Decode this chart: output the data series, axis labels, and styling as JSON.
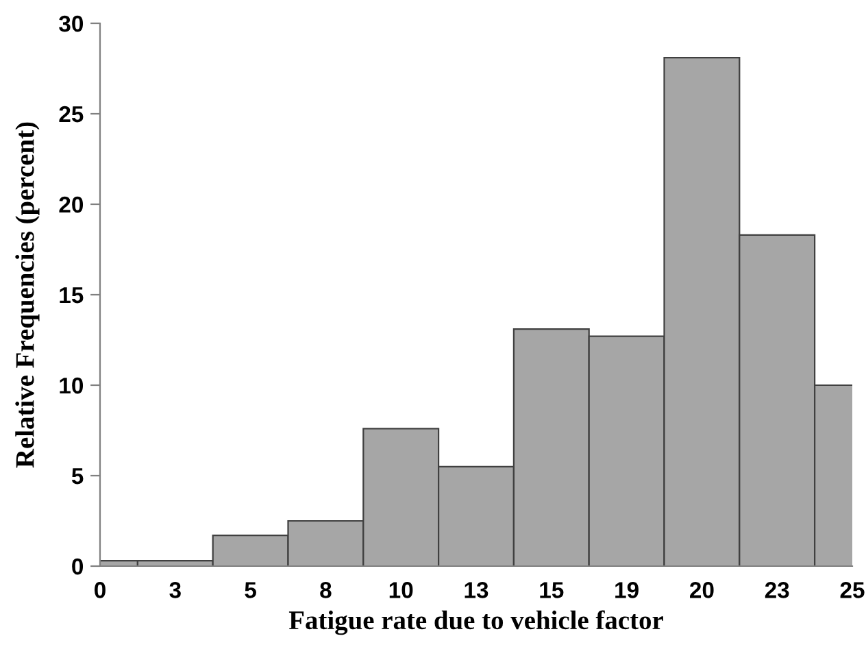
{
  "chart_data": {
    "type": "bar",
    "xlabel": "Fatigue rate due to vehicle factor",
    "ylabel": "Relative Frequencies (percent)",
    "categories": [
      "0",
      "3",
      "5",
      "8",
      "10",
      "13",
      "15",
      "19",
      "20",
      "23",
      "25"
    ],
    "values": [
      0.3,
      0.3,
      1.7,
      2.5,
      7.6,
      5.5,
      13.1,
      12.7,
      28.1,
      18.3,
      10.0
    ],
    "color": "#a6a6a6",
    "ylim": [
      0,
      30
    ],
    "yticks": [
      0,
      5,
      10,
      15,
      20,
      25,
      30
    ],
    "grid": false
  }
}
